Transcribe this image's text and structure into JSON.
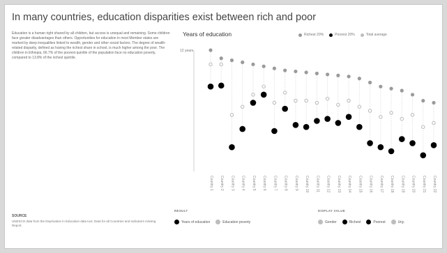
{
  "header": {
    "title": "In many countries, education disparities exist between rich and poor"
  },
  "body": {
    "paragraph": "Education is a human right shared by all children, but access is unequal and remaining. Some children face greater disadvantages than others. Opportunities for education in most Member states are marked by deep inequalities linked to wealth, gender and other social factors. The degree of wealth-related disparity, defined as having the richest share in school, is much higher among the poor. The children in Ethiopia, 66.7% of the poorest quintile of the population face no education poverty, compared to 13.8% of the richest quintile."
  },
  "source": {
    "label": "SOURCE",
    "text": "UNESCO data from the Deprivation in Education data tool. Data for all Countries and Indicators missing Report."
  },
  "chart_data": {
    "type": "scatter",
    "title": "Years of education",
    "ylabel": "",
    "y_tick_top": "12 years",
    "ylim": [
      0,
      12
    ],
    "categories": [
      "Country 1",
      "Country 2",
      "Country 3",
      "Country 4",
      "Country 5",
      "Country 6",
      "Country 7",
      "Country 8",
      "Country 9",
      "Country 10",
      "Country 11",
      "Country 12",
      "Country 13",
      "Country 14",
      "Country 15",
      "Country 16",
      "Country 17",
      "Country 18",
      "Country 19",
      "Country 20",
      "Country 21",
      "Country 22"
    ],
    "series": [
      {
        "name": "Richest 20%",
        "color": "#9a9a9a",
        "values": [
          12.0,
          11.2,
          11.0,
          10.8,
          10.6,
          10.4,
          10.2,
          10.0,
          9.9,
          9.8,
          9.7,
          9.6,
          9.5,
          9.4,
          9.2,
          8.8,
          8.4,
          8.2,
          8.0,
          7.6,
          7.0,
          6.8
        ]
      },
      {
        "name": "Poorest 20%",
        "color": "#000000",
        "values": [
          8.4,
          8.5,
          2.4,
          4.2,
          6.8,
          7.6,
          4.0,
          6.2,
          4.6,
          4.4,
          5.0,
          5.2,
          4.8,
          5.4,
          4.4,
          2.8,
          2.4,
          2.0,
          3.2,
          2.8,
          1.6,
          2.6
        ]
      },
      {
        "name": "Total average",
        "color": "#bdbdbd",
        "values": [
          10.6,
          10.6,
          5.6,
          6.4,
          7.6,
          8.4,
          6.8,
          7.8,
          7.0,
          7.0,
          6.8,
          7.2,
          6.6,
          7.0,
          6.4,
          6.0,
          5.4,
          5.8,
          5.2,
          5.6,
          4.4,
          4.8
        ]
      }
    ],
    "legend_placement": "top-right",
    "grid": false
  },
  "top_legend": [
    {
      "label": "Richest 20%",
      "color": "#9a9a9a"
    },
    {
      "label": "Poorest 20%",
      "color": "#000000"
    },
    {
      "label": "Total average",
      "color": "#bdbdbd"
    }
  ],
  "bottom_legend": {
    "group1": {
      "label": "RESULT",
      "items": [
        {
          "label": "Years of education",
          "color": "#000000"
        },
        {
          "label": "Education poverty",
          "color": "#bdbdbd"
        }
      ]
    },
    "group2": {
      "label": "DISPLAY VALUE",
      "items": [
        {
          "label": "Gender",
          "color": "#bdbdbd"
        },
        {
          "label": "Richest",
          "color": "#000000"
        },
        {
          "label": "Poorest",
          "color": "#000000"
        },
        {
          "label": "Urg.",
          "color": "#bdbdbd"
        }
      ]
    }
  }
}
